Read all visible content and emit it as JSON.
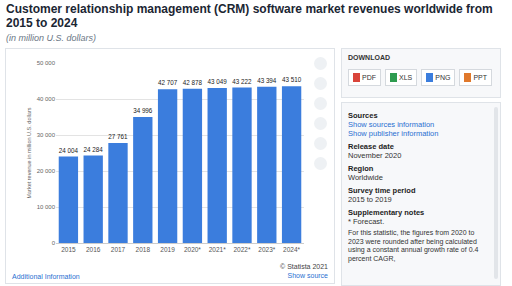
{
  "chart_data": {
    "type": "bar",
    "title": "Customer relationship management (CRM) software market revenues worldwide from 2015 to 2024",
    "subtitle": "(in million U.S. dollars)",
    "y_label": "Market revenue in million U.S. dollars",
    "categories": [
      "2015",
      "2016",
      "2017",
      "2018",
      "2019",
      "2020*",
      "2021*",
      "2022*",
      "2023*",
      "2024*"
    ],
    "values": [
      24004,
      24284,
      27761,
      34996,
      42707,
      42878,
      43049,
      43222,
      43394,
      43510
    ],
    "value_labels": [
      "24 004",
      "24 284",
      "27 761",
      "34 996",
      "42 707",
      "42 878",
      "43 049",
      "43 222",
      "43 394",
      "43 510"
    ],
    "color": "#3b7ddd",
    "ylim": [
      0,
      50000
    ],
    "yticks": [
      0,
      {
        "value": 10000,
        "label": "10 000"
      },
      {
        "value": 20000,
        "label": "20 000"
      },
      {
        "value": 30000,
        "label": "30 000"
      },
      {
        "value": 40000,
        "label": "40 000"
      },
      {
        "value": 50000,
        "label": "50 000"
      }
    ],
    "grid": true,
    "data_labels": true
  },
  "chart_footer": {
    "left": "Additional Information",
    "copyright": "© Statista 2021",
    "link": "Show source"
  },
  "download": {
    "title": "DOWNLOAD",
    "buttons": [
      {
        "label": "PDF",
        "color": "#d9443a"
      },
      {
        "label": "XLS",
        "color": "#2e9b4f"
      },
      {
        "label": "PNG",
        "color": "#3b7ddd"
      },
      {
        "label": "PPT",
        "color": "#e0782b"
      }
    ]
  },
  "info": {
    "sources": {
      "label": "Sources",
      "links": [
        "Show sources information",
        "Show publisher information"
      ]
    },
    "fields": [
      {
        "label": "Release date",
        "value": "November 2020"
      },
      {
        "label": "Region",
        "value": "Worldwide"
      },
      {
        "label": "Survey time period",
        "value": "2015 to 2019"
      },
      {
        "label": "Supplementary notes",
        "value": "* Forecast."
      }
    ],
    "note": "For this statistic, the figures from 2020 to 2023 were rounded after being calculated using a constant annual growth rate of 0.4 percent CAGR,"
  }
}
